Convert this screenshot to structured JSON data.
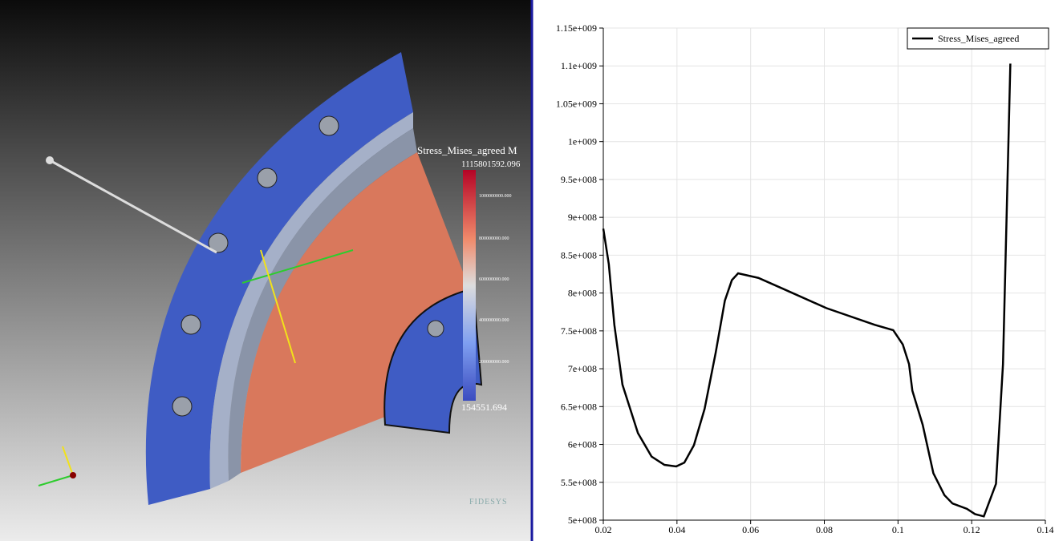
{
  "viewport": {
    "colorbar": {
      "title": "Stress_Mises_agreed M",
      "max": "1115801592.096",
      "min": "154551.694",
      "ticks": [
        "1000000000.000",
        "800000000.000",
        "600000000.000",
        "400000000.000",
        "200000000.000"
      ]
    },
    "logo": "FIDESYS"
  },
  "chart_data": {
    "type": "line",
    "x": [
      0.02,
      0.0215,
      0.023,
      0.0252,
      0.0294,
      0.0331,
      0.0366,
      0.0398,
      0.042,
      0.0446,
      0.0475,
      0.0505,
      0.053,
      0.0549,
      0.0566,
      0.0621,
      0.0686,
      0.0806,
      0.0937,
      0.0987,
      0.1013,
      0.103,
      0.1039,
      0.1067,
      0.1096,
      0.1126,
      0.1148,
      0.1187,
      0.1209,
      0.1233,
      0.1266,
      0.1285,
      0.1305
    ],
    "series": [
      {
        "name": "Stress_Mises_agreed",
        "color": "#000000",
        "values": [
          885000000,
          838000000,
          758000000,
          679000000,
          615000000,
          584000000,
          573000000,
          571000000,
          576000000,
          599000000,
          647000000,
          721000000,
          790000000,
          817000000,
          826000000,
          820000000,
          806000000,
          780000000,
          758000000,
          751000000,
          732000000,
          706000000,
          671000000,
          626000000,
          562000000,
          533000000,
          522000000,
          515000000,
          508000000,
          505000000,
          548000000,
          706000000,
          1103000000
        ]
      }
    ],
    "xlim": [
      0.02,
      0.14
    ],
    "xticks": [
      0.02,
      0.04,
      0.06,
      0.08,
      0.1,
      0.12,
      0.14
    ],
    "ylim": [
      500000000,
      1150000000
    ],
    "yticks": [
      {
        "value": 500000000,
        "label": "5e+008"
      },
      {
        "value": 550000000,
        "label": "5.5e+008"
      },
      {
        "value": 600000000,
        "label": "6e+008"
      },
      {
        "value": 650000000,
        "label": "6.5e+008"
      },
      {
        "value": 700000000,
        "label": "7e+008"
      },
      {
        "value": 750000000,
        "label": "7.5e+008"
      },
      {
        "value": 800000000,
        "label": "8e+008"
      },
      {
        "value": 850000000,
        "label": "8.5e+008"
      },
      {
        "value": 900000000,
        "label": "9e+008"
      },
      {
        "value": 950000000,
        "label": "9.5e+008"
      },
      {
        "value": 1000000000,
        "label": "1e+009"
      },
      {
        "value": 1050000000,
        "label": "1.05e+009"
      },
      {
        "value": 1100000000,
        "label": "1.1e+009"
      },
      {
        "value": 1150000000,
        "label": "1.15e+009"
      }
    ],
    "grid": true,
    "legend": "upper right"
  }
}
